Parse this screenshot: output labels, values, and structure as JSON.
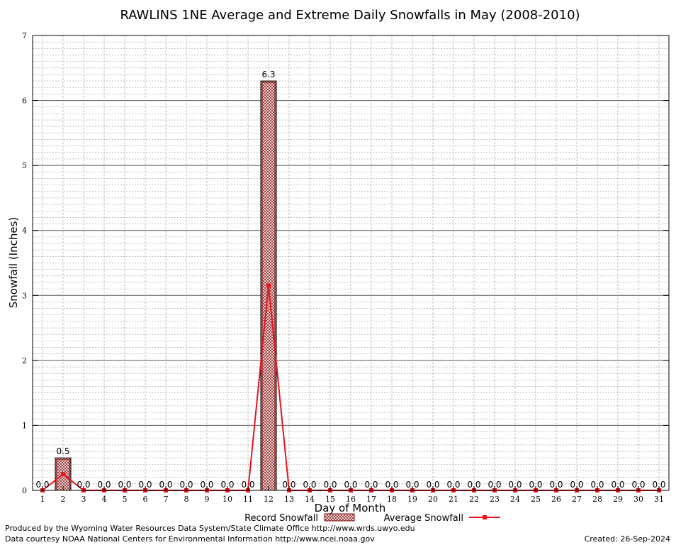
{
  "chart_data": {
    "type": "bar",
    "title": "RAWLINS 1NE Average and Extreme Daily Snowfalls in May (2008-2010)",
    "xlabel": "Day of Month",
    "ylabel": "Snowfall (Inches)",
    "ylim": [
      0,
      7
    ],
    "yticks": [
      "0",
      "1",
      "2",
      "3",
      "4",
      "5",
      "6",
      "7"
    ],
    "grid": true,
    "categories": [
      "1",
      "2",
      "3",
      "4",
      "5",
      "6",
      "7",
      "8",
      "9",
      "10",
      "11",
      "12",
      "13",
      "14",
      "15",
      "16",
      "17",
      "18",
      "19",
      "20",
      "21",
      "22",
      "23",
      "24",
      "25",
      "26",
      "27",
      "28",
      "29",
      "30",
      "31"
    ],
    "series": [
      {
        "name": "Record Snowfall",
        "type": "bar",
        "color": "#8b1a1a",
        "values": [
          0,
          0.5,
          0,
          0,
          0,
          0,
          0,
          0,
          0,
          0,
          0,
          6.3,
          0,
          0,
          0,
          0,
          0,
          0,
          0,
          0,
          0,
          0,
          0,
          0,
          0,
          0,
          0,
          0,
          0,
          0,
          0
        ],
        "labels": [
          "0.0",
          "0.5",
          "0.0",
          "0.0",
          "0.0",
          "0.0",
          "0.0",
          "0.0",
          "0.0",
          "0.0",
          "0.0",
          "6.3",
          "0.0",
          "0.0",
          "0.0",
          "0.0",
          "0.0",
          "0.0",
          "0.0",
          "0.0",
          "0.0",
          "0.0",
          "0.0",
          "0.0",
          "0.0",
          "0.0",
          "0.0",
          "0.0",
          "0.0",
          "0.0",
          "0.0"
        ]
      },
      {
        "name": "Average Snowfall",
        "type": "line",
        "color": "#e8141e",
        "values": [
          0,
          0.25,
          0,
          0,
          0,
          0,
          0,
          0,
          0,
          0,
          0,
          3.15,
          0,
          0,
          0,
          0,
          0,
          0,
          0,
          0,
          0,
          0,
          0,
          0,
          0,
          0,
          0,
          0,
          0,
          0,
          0
        ]
      }
    ],
    "legend": "bottom-center"
  },
  "footer": {
    "line1": "Produced by the Wyoming Water Resources Data System/State Climate Office http://www.wrds.uwyo.edu",
    "line2": "Data courtesy NOAA National Centers for Environmental Information http://www.ncei.noaa.gov",
    "created": "Created: 26-Sep-2024"
  }
}
